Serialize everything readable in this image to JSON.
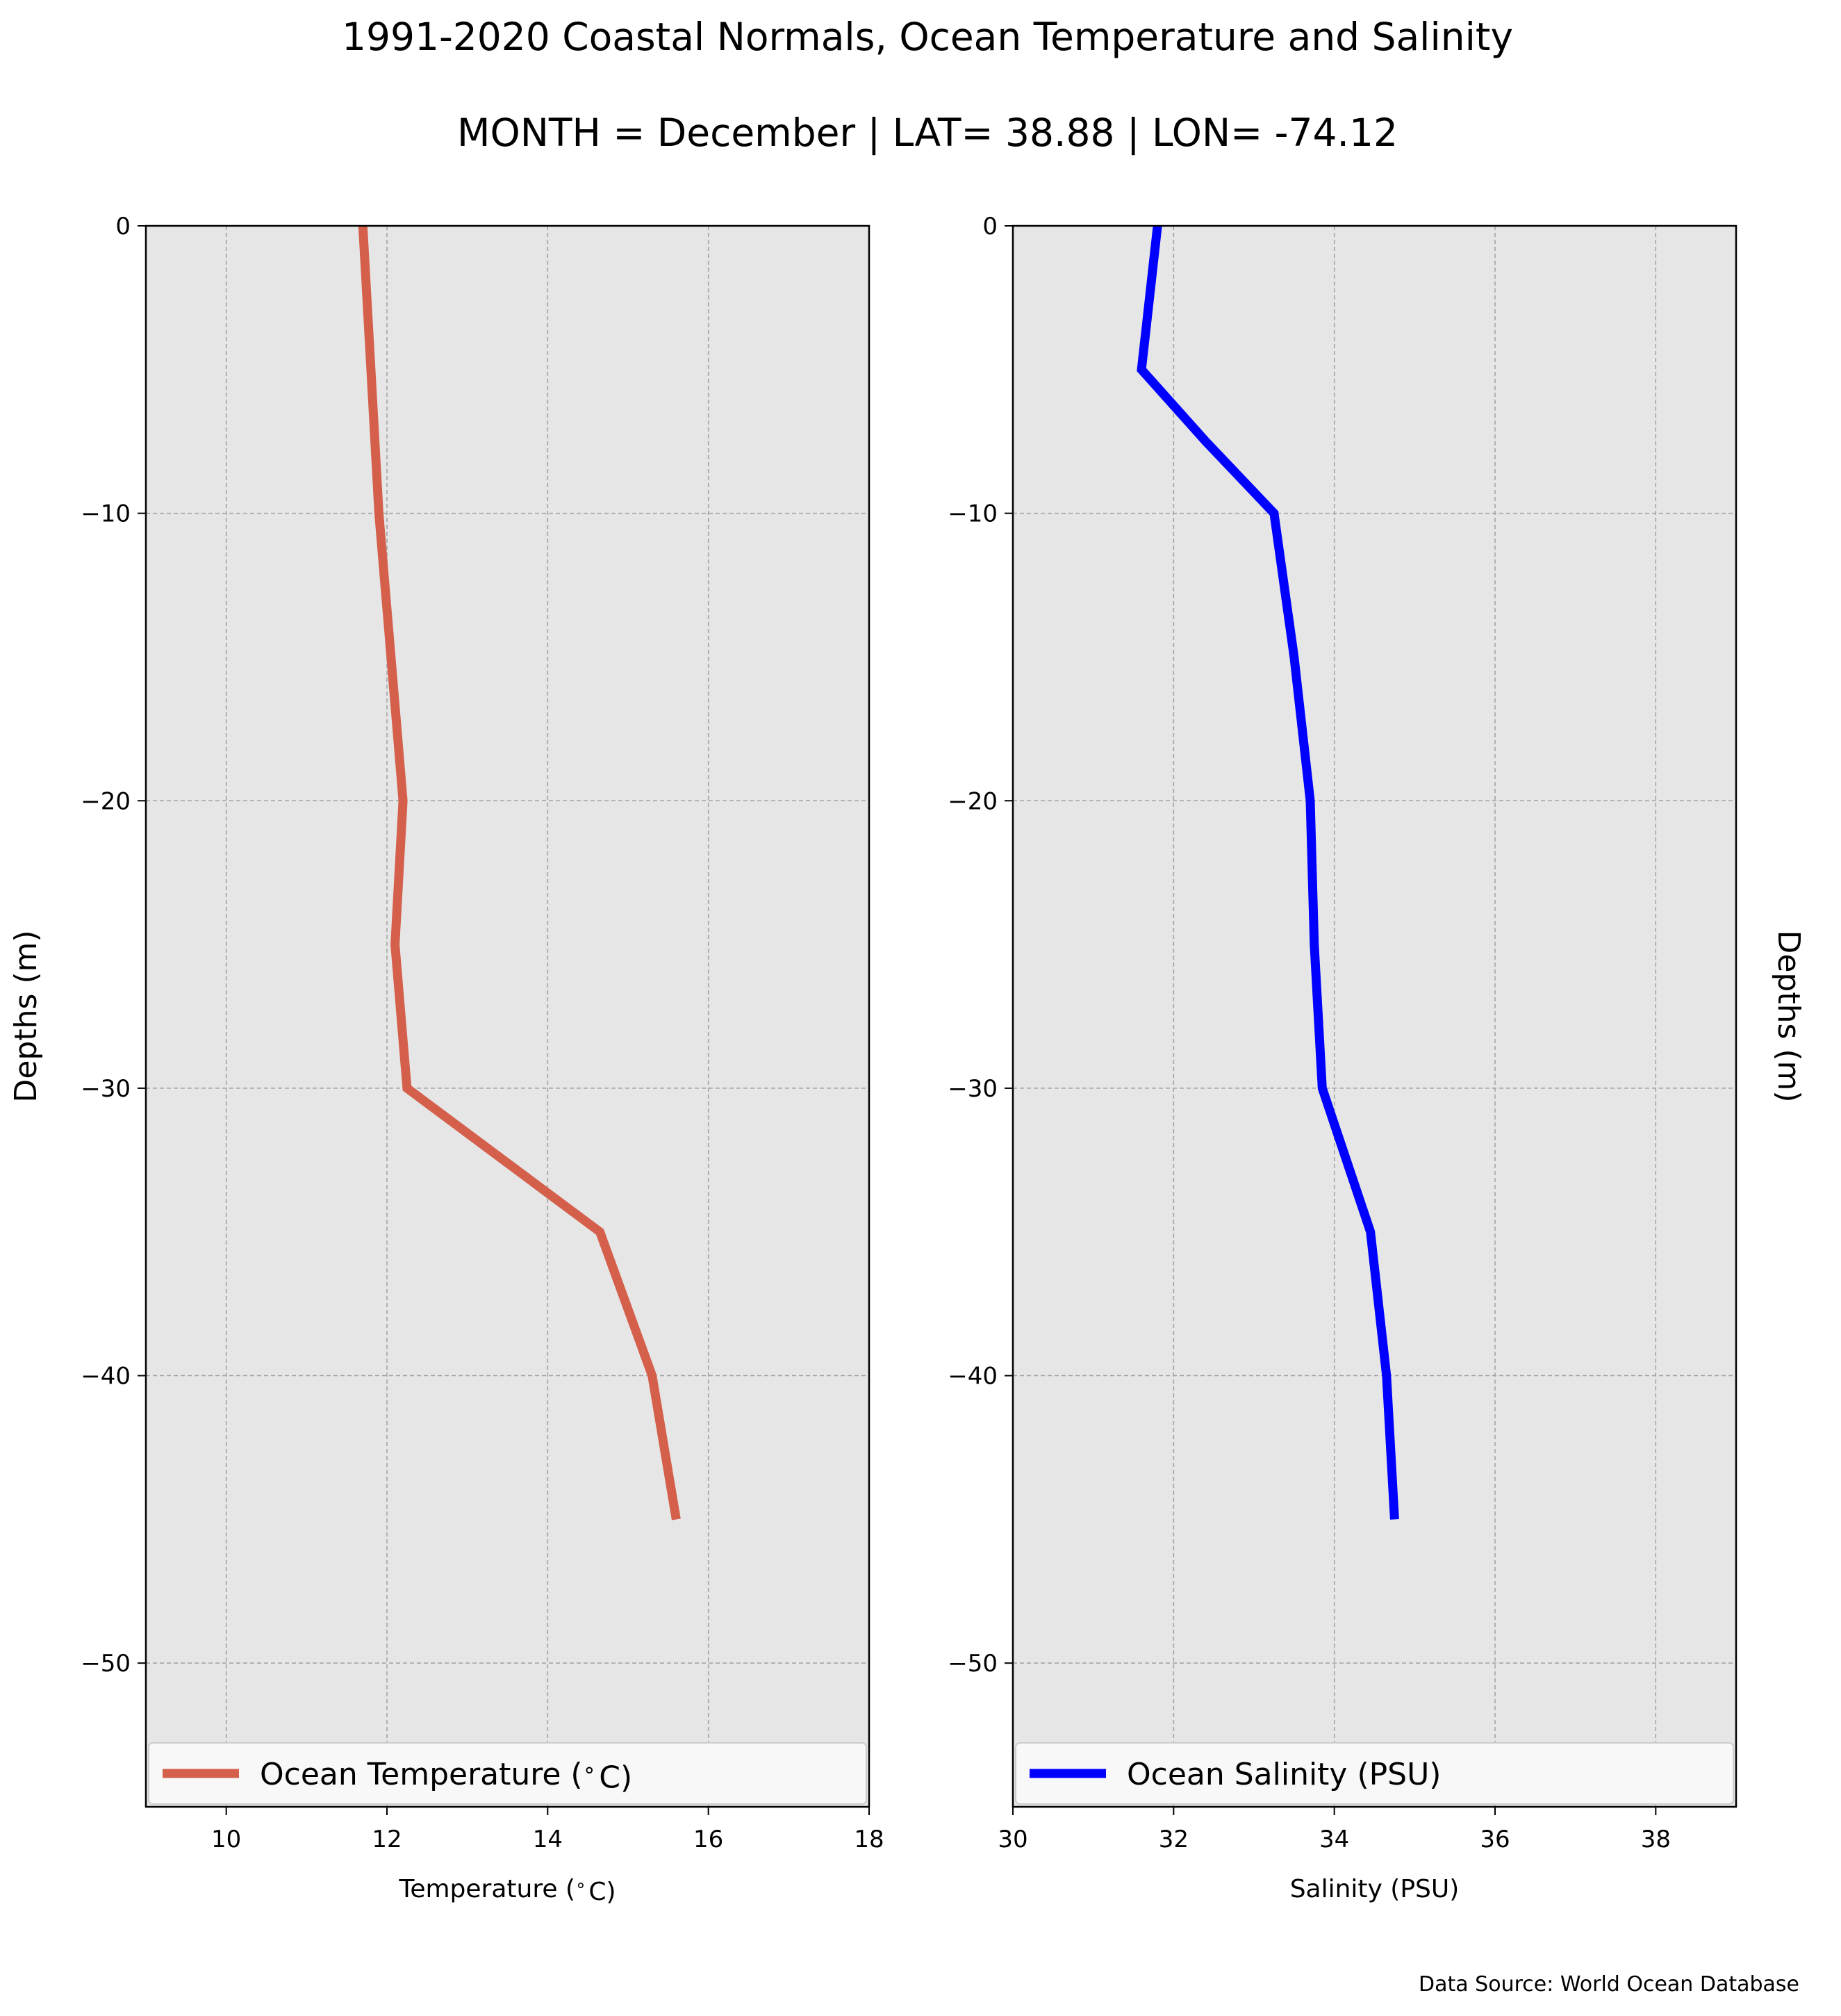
{
  "figure": {
    "title": "1991-2020 Coastal Normals, Ocean Temperature and Salinity",
    "subtitle": "MONTH = December | LAT= 38.88 | LON= -74.12",
    "source": "Data Source: World Ocean Database"
  },
  "colors": {
    "panel_bg": "#e6e6e6",
    "grid": "#a0a0a0",
    "temperature": "#d45f4b",
    "salinity": "#0000ff"
  },
  "chart_data": [
    {
      "type": "line",
      "xlabel": "Temperature ($^\\circ$C)",
      "ylabel": "Depths (m)",
      "ylabel_side": "left",
      "xlim": [
        9,
        18
      ],
      "ylim": [
        -55,
        0
      ],
      "xticks": [
        10,
        12,
        14,
        16,
        18
      ],
      "xtick_labels": [
        "10",
        "12",
        "14",
        "16",
        "18"
      ],
      "yticks": [
        0,
        -10,
        -20,
        -30,
        -40,
        -50
      ],
      "ytick_labels": [
        "0",
        "−10",
        "−20",
        "−30",
        "−40",
        "−50"
      ],
      "grid": true,
      "legend": "lower-center",
      "series": [
        {
          "name": "Ocean Temperature ($^\\circ$C)",
          "color": "#d45f4b",
          "x": [
            11.7,
            11.8,
            11.9,
            12.05,
            12.2,
            12.1,
            12.25,
            14.65,
            15.3,
            15.6
          ],
          "y": [
            0,
            -5,
            -10,
            -15,
            -20,
            -25,
            -30,
            -35,
            -40,
            -45
          ]
        }
      ]
    },
    {
      "type": "line",
      "xlabel": "Salinity (PSU)",
      "ylabel": "Depths (m)",
      "ylabel_side": "right",
      "xlim": [
        30,
        39
      ],
      "ylim": [
        -55,
        0
      ],
      "xticks": [
        30,
        32,
        34,
        36,
        38
      ],
      "xtick_labels": [
        "30",
        "32",
        "34",
        "36",
        "38"
      ],
      "yticks": [
        0,
        -10,
        -20,
        -30,
        -40,
        -50
      ],
      "ytick_labels": [
        "0",
        "−10",
        "−20",
        "−30",
        "−40",
        "−50"
      ],
      "grid": true,
      "legend": "lower-center",
      "series": [
        {
          "name": "Ocean Salinity (PSU)",
          "color": "#0000ff",
          "x": [
            31.8,
            31.6,
            32.4,
            33.25,
            33.5,
            33.7,
            33.75,
            33.85,
            34.45,
            34.65,
            34.75
          ],
          "y": [
            0,
            -5,
            -7.5,
            -10,
            -15,
            -20,
            -25,
            -30,
            -35,
            -40,
            -45
          ]
        }
      ]
    }
  ]
}
